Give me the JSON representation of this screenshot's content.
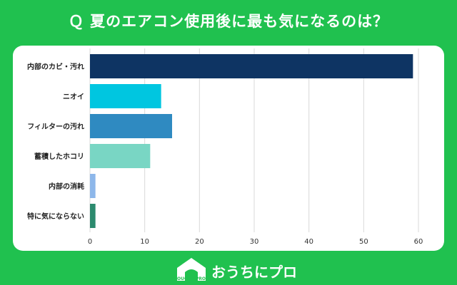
{
  "header": {
    "title": "Ｑ 夏のエアコン使用後に最も気になるのは？"
  },
  "brand": {
    "name": "おうちにプロ",
    "logo_text": "OUCHInPRO"
  },
  "colors": {
    "background": "#20c14f",
    "card": "#ffffff",
    "grid": "#d9d9d9"
  },
  "chart_data": {
    "type": "bar",
    "orientation": "horizontal",
    "categories": [
      "内部のカビ・汚れ",
      "ニオイ",
      "フィルターの汚れ",
      "蓄積したホコリ",
      "内部の消耗",
      "特に気にならない"
    ],
    "values": [
      59,
      13,
      15,
      11,
      1,
      1
    ],
    "colors": [
      "#0e3463",
      "#00c6e0",
      "#2f8ac1",
      "#79d6c4",
      "#8db7ea",
      "#2c8a6e"
    ],
    "xlim": [
      0,
      60
    ],
    "xticks": [
      "0",
      "10",
      "20",
      "30",
      "40",
      "50",
      "60"
    ],
    "grid": true,
    "legend": "none"
  }
}
